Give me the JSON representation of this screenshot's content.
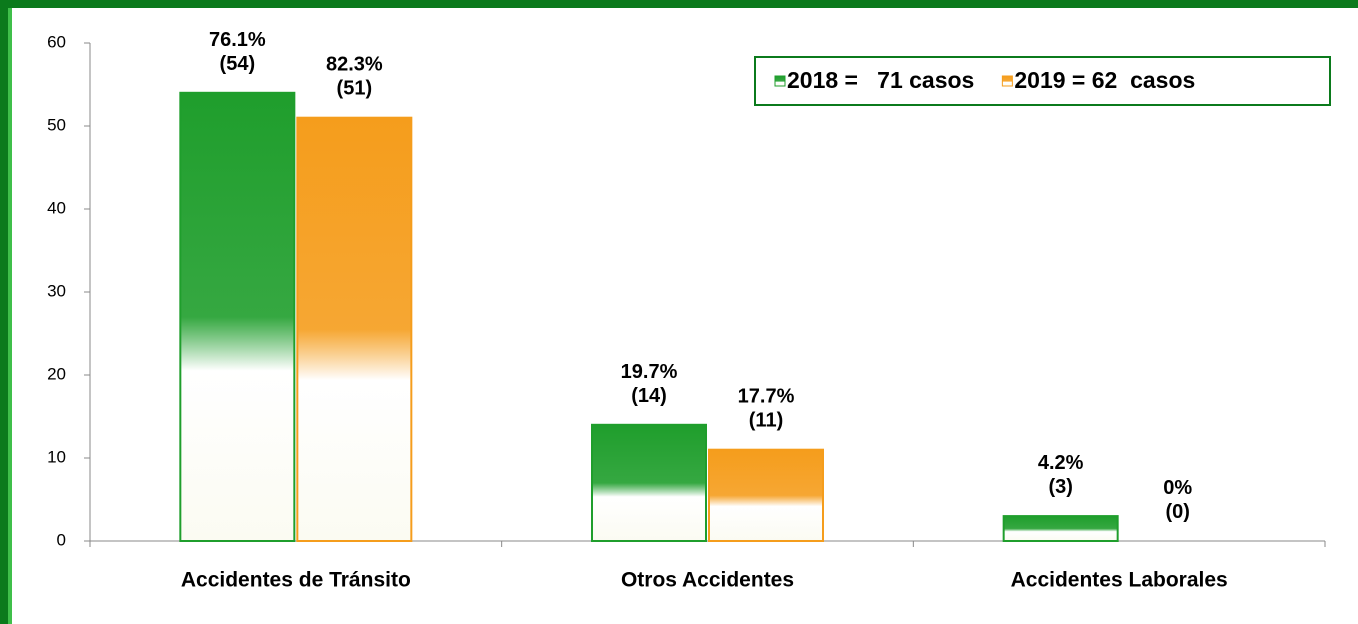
{
  "chart_data": {
    "type": "bar",
    "categories": [
      "Accidentes de Tránsito",
      "Otros Accidentes",
      "Accidentes Laborales"
    ],
    "series": [
      {
        "name": "2018 =   71 casos",
        "color": "#1f9e2c",
        "values": [
          54,
          14,
          3
        ],
        "value_labels": [
          "76.1%\n(54)",
          "19.7%\n(14)",
          "4.2%\n(3)"
        ]
      },
      {
        "name": "2019 = 62  casos",
        "color": "#f59d1c",
        "values": [
          51,
          11,
          0
        ],
        "value_labels": [
          "82.3%\n(51)",
          "17.7%\n(11)",
          "0%\n(0)"
        ]
      }
    ],
    "ylim": [
      0,
      60
    ],
    "yticks": [
      0,
      10,
      20,
      30,
      40,
      50,
      60
    ],
    "grid": false,
    "legend": "top-right"
  }
}
